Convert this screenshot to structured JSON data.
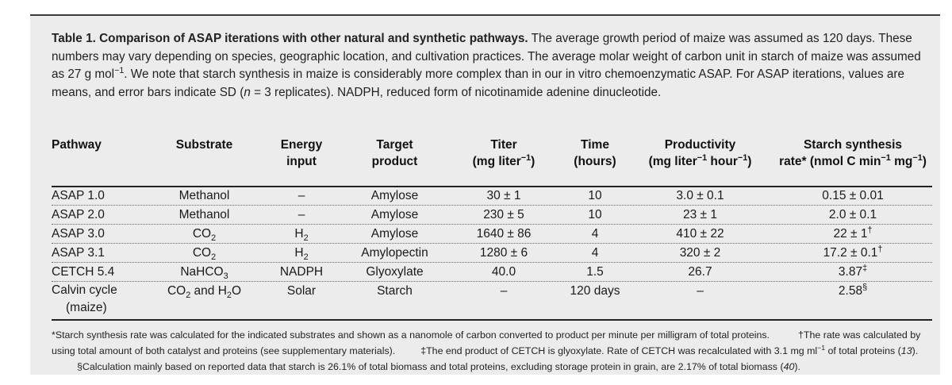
{
  "caption": {
    "title": "Table 1. Comparison of ASAP iterations with other natural and synthetic pathways.",
    "text_1": " The average growth period of maize was assumed as 120 days. These numbers may vary depending on species, geographic location, and cultivation practices. The average molar weight of carbon unit in starch of maize was assumed as 27 g mol",
    "sup_1": "−1",
    "text_2": ". We note that starch synthesis in maize is considerably more complex than in our in vitro chemoenzymatic ASAP. For ASAP iterations, values are means, and error bars indicate SD (",
    "n_italic": "n",
    "text_3": " = 3 replicates). NADPH, reduced form of nicotinamide adenine dinucleotide."
  },
  "headers": {
    "pathway": "Pathway",
    "substrate": "Substrate",
    "energy_1": "Energy",
    "energy_2": "input",
    "target_1": "Target",
    "target_2": "product",
    "titer_1": "Titer",
    "titer_2a": "(mg liter",
    "titer_sup": "−1",
    "titer_2b": ")",
    "time_1": "Time",
    "time_2": "(hours)",
    "prod_1": "Productivity",
    "prod_2a": "(mg liter",
    "prod_sup1": "−1",
    "prod_2b": " hour",
    "prod_sup2": "−1",
    "prod_2c": ")",
    "rate_1": "Starch synthesis",
    "rate_2a": "rate* (nmol C min",
    "rate_sup1": "−1",
    "rate_2b": " mg",
    "rate_sup2": "−1",
    "rate_2c": ")"
  },
  "rows": [
    {
      "pathway": "ASAP 1.0",
      "substrate": "Methanol",
      "energy": "–",
      "target": "Amylose",
      "titer": "30 ± 1",
      "time": "10",
      "productivity": "3.0 ± 0.1",
      "rate": "0.15 ± 0.01"
    },
    {
      "pathway": "ASAP 2.0",
      "substrate": "Methanol",
      "energy": "–",
      "target": "Amylose",
      "titer": "230 ± 5",
      "time": "10",
      "productivity": "23 ± 1",
      "rate": "2.0 ± 0.1"
    },
    {
      "pathway": "ASAP 3.0",
      "substrate_main": "CO",
      "substrate_sub": "2",
      "energy_main": "H",
      "energy_sub": "2",
      "target": "Amylose",
      "titer": "1640 ± 86",
      "time": "4",
      "productivity": "410 ± 22",
      "rate_main": "22 ± 1",
      "rate_sup": "†"
    },
    {
      "pathway": "ASAP 3.1",
      "substrate_main": "CO",
      "substrate_sub": "2",
      "energy_main": "H",
      "energy_sub": "2",
      "target": "Amylopectin",
      "titer": "1280 ± 6",
      "time": "4",
      "productivity": "320 ± 2",
      "rate_main": "17.2 ± 0.1",
      "rate_sup": "†"
    },
    {
      "pathway": "CETCH 5.4",
      "substrate_main": "NaHCO",
      "substrate_sub": "3",
      "energy": "NADPH",
      "target": "Glyoxylate",
      "titer": "40.0",
      "time": "1.5",
      "productivity": "26.7",
      "rate_main": "3.87",
      "rate_sup": "‡"
    },
    {
      "pathway_1": "Calvin cycle",
      "pathway_2": "(maize)",
      "substrate_a": "CO",
      "substrate_a_sub": "2",
      "substrate_mid": " and H",
      "substrate_b_sub": "2",
      "substrate_b": "O",
      "energy": "Solar",
      "target": "Starch",
      "titer": "–",
      "time": "120 days",
      "productivity": "–",
      "rate_main": "2.58",
      "rate_sup": "§"
    }
  ],
  "footnote": {
    "t1": "*Starch synthesis rate was calculated for the indicated substrates and shown as a nanomole of carbon converted to product per minute per milligram of total proteins.",
    "t2": "†The rate was calculated by using total amount of both catalyst and proteins (see supplementary materials).",
    "t3a": "‡The end product of CETCH is glyoxylate. Rate of CETCH was recalculated with 3.1 mg ml",
    "t3sup": "−1",
    "t3b": " of total proteins (",
    "t3ref": "13",
    "t3c": ").",
    "t4a": "§Calculation mainly based on reported data that starch is 26.1% of total biomass and total proteins, excluding storage protein in grain, are 2.17% of total biomass (",
    "t4ref": "40",
    "t4b": ")."
  }
}
